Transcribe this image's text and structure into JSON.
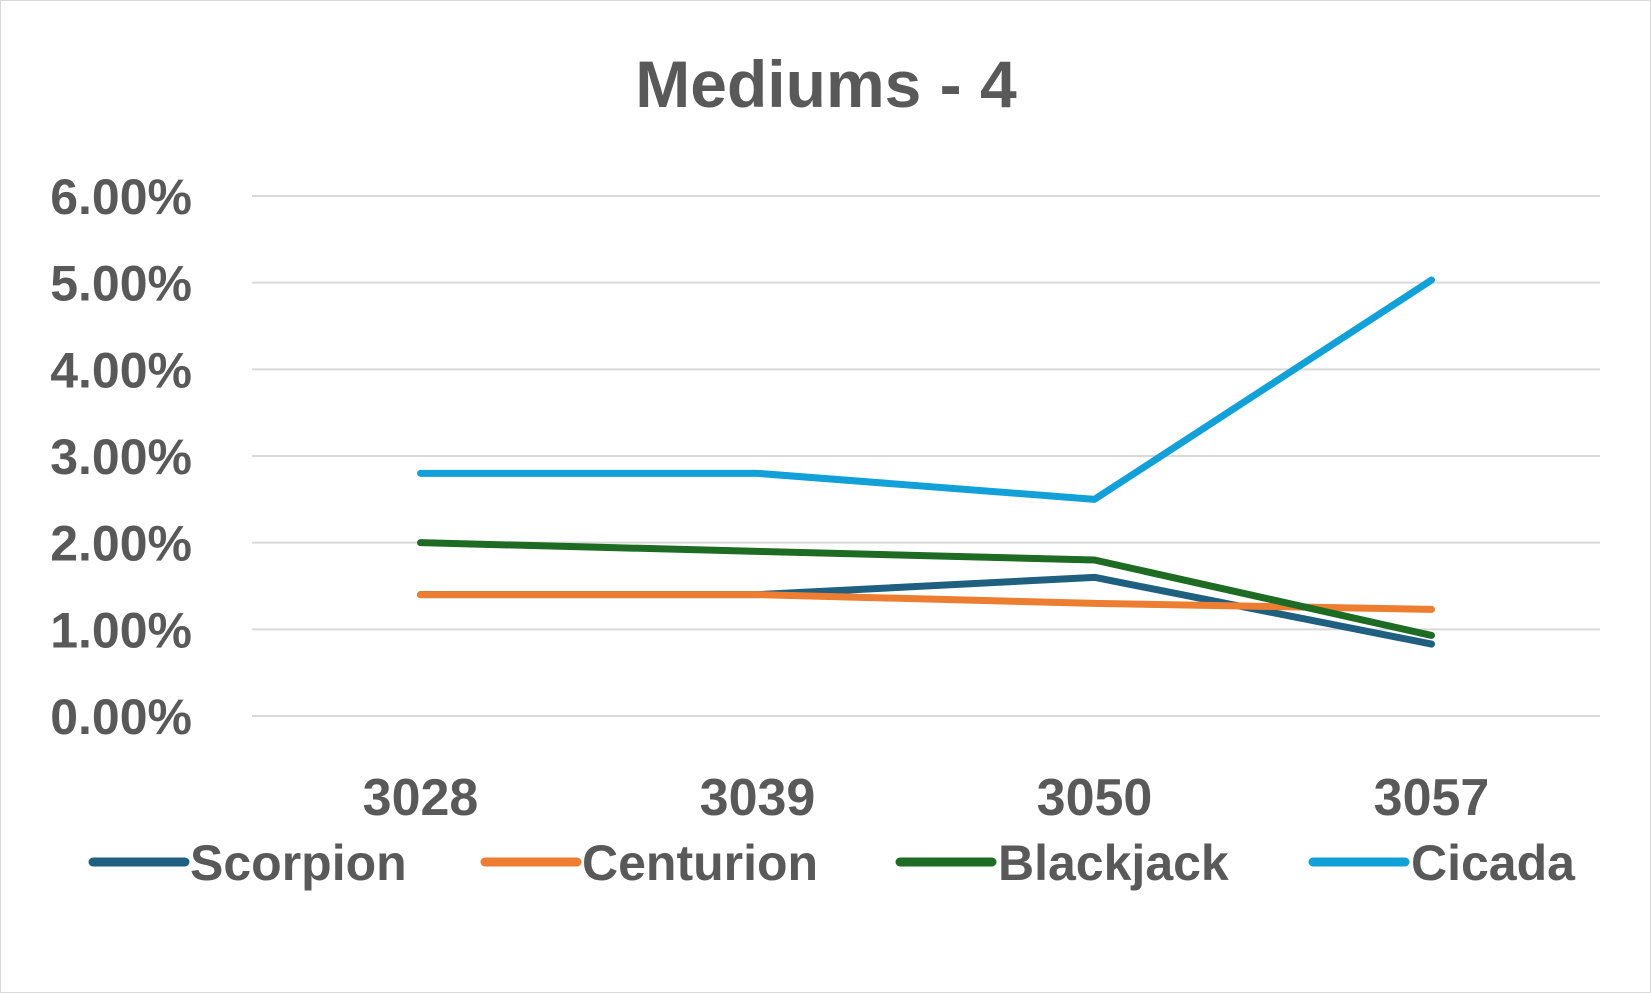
{
  "chart_data": {
    "type": "line",
    "title": "Mediums - 4",
    "xlabel": "",
    "ylabel": "",
    "categories": [
      "3028",
      "3039",
      "3050",
      "3057"
    ],
    "ylim": [
      0,
      0.06
    ],
    "yticks": [
      0,
      0.01,
      0.02,
      0.03,
      0.04,
      0.05,
      0.06
    ],
    "ytick_labels": [
      "0.00%",
      "1.00%",
      "2.00%",
      "3.00%",
      "4.00%",
      "5.00%",
      "6.00%"
    ],
    "grid": true,
    "legend_position": "bottom",
    "series": [
      {
        "name": "Scorpion",
        "color": "#1f5f7f",
        "values": [
          0.014,
          0.014,
          0.016,
          0.0083
        ]
      },
      {
        "name": "Centurion",
        "color": "#ed7d31",
        "values": [
          0.014,
          0.014,
          0.013,
          0.0123
        ]
      },
      {
        "name": "Blackjack",
        "color": "#1e6b24",
        "values": [
          0.02,
          0.019,
          0.018,
          0.0093
        ]
      },
      {
        "name": "Cicada",
        "color": "#12a0d8",
        "values": [
          0.028,
          0.028,
          0.025,
          0.0503
        ]
      }
    ]
  }
}
